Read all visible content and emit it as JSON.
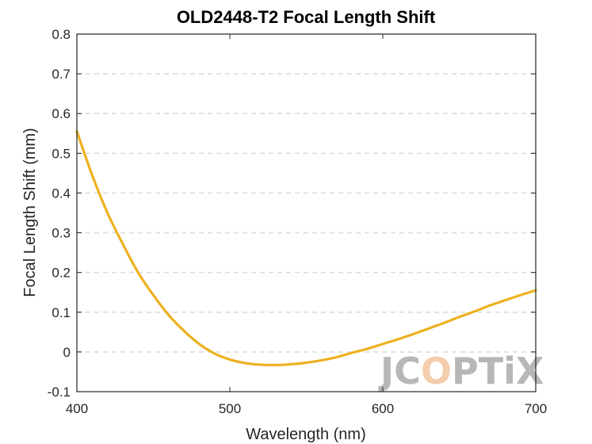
{
  "chart_data": {
    "type": "line",
    "title": "OLD2448-T2 Focal Length Shift",
    "xlabel": "Wavelength (nm)",
    "ylabel": "Focal Length Shift (mm)",
    "xlim": [
      400,
      700
    ],
    "ylim": [
      -0.1,
      0.8
    ],
    "x_ticks": [
      400,
      500,
      600,
      700
    ],
    "x_tick_labels": [
      "400",
      "500",
      "600",
      "700"
    ],
    "y_ticks": [
      -0.1,
      0,
      0.1,
      0.2,
      0.3,
      0.4,
      0.5,
      0.6,
      0.7,
      0.8
    ],
    "y_tick_labels": [
      "-0.1",
      "0",
      "0.1",
      "0.2",
      "0.3",
      "0.4",
      "0.5",
      "0.6",
      "0.7",
      "0.8"
    ],
    "grid": "horizontal-dashed",
    "legend": "none",
    "series": [
      {
        "color": "#EDB120",
        "x": [
          400,
          410,
          420,
          430,
          440,
          450,
          460,
          470,
          480,
          490,
          500,
          510,
          520,
          530,
          540,
          550,
          560,
          570,
          580,
          590,
          600,
          610,
          620,
          630,
          640,
          650,
          660,
          670,
          680,
          690,
          700
        ],
        "y": [
          0.555,
          0.445,
          0.35,
          0.272,
          0.2,
          0.143,
          0.093,
          0.053,
          0.02,
          -0.004,
          -0.019,
          -0.028,
          -0.032,
          -0.033,
          -0.031,
          -0.027,
          -0.021,
          -0.013,
          -0.002,
          0.008,
          0.02,
          0.032,
          0.045,
          0.059,
          0.073,
          0.088,
          0.102,
          0.117,
          0.13,
          0.143,
          0.155
        ]
      }
    ]
  },
  "watermark": {
    "text_left": "JC",
    "text_o": "O",
    "text_right": "PTiX",
    "color": "#9a9a9a",
    "accent_color": "#f0b98a"
  }
}
